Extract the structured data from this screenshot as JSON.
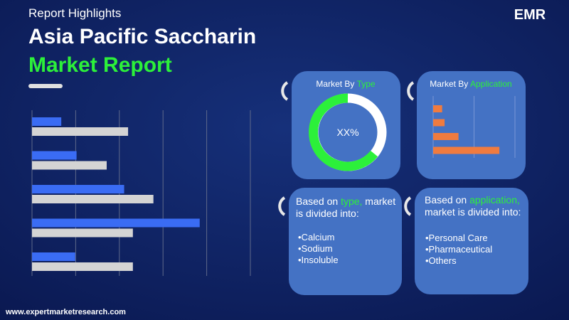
{
  "header": {
    "subtitle": "Report Highlights",
    "title": "Asia Pacific Saccharin",
    "title_highlight": "Market Report"
  },
  "logo": "EMR",
  "chart_data": [
    {
      "type": "bar",
      "orientation": "horizontal",
      "grid": true,
      "xlim": [
        0,
        5
      ],
      "xticks": [
        0,
        1,
        2,
        3,
        4,
        5
      ],
      "series": [
        {
          "color": "#3a6cf4",
          "values": [
            0.67,
            1.02,
            2.11,
            3.84,
            0.99
          ]
        },
        {
          "color": "#d4d4d4",
          "values": [
            2.2,
            1.71,
            2.78,
            2.31,
            2.31
          ]
        }
      ]
    },
    {
      "type": "bar",
      "orientation": "horizontal",
      "grid": true,
      "title_prefix": "Market By ",
      "title_highlight": "Application",
      "xlim": [
        0,
        2
      ],
      "xticks": [
        0,
        1,
        2
      ],
      "color": "#f07b3f",
      "values": [
        0.22,
        0.28,
        0.62,
        1.62
      ]
    }
  ],
  "type_panel": {
    "title_prefix": "Market By ",
    "title_highlight": "Type",
    "center_label": "XX%"
  },
  "type_box": {
    "line1_prefix": "Based on ",
    "line1_highlight": "type,",
    "line1_suffix": " market",
    "line2": "is divided into:",
    "items": [
      "•Calcium",
      "•Sodium",
      "•Insoluble"
    ]
  },
  "application_box": {
    "line1_prefix": "Based on ",
    "line1_highlight": "application,",
    "line2": "market is divided into:",
    "items": [
      "•Personal Care",
      "•Pharmaceutical",
      "•Others"
    ]
  },
  "footer": "www.expertmarketresearch.com"
}
